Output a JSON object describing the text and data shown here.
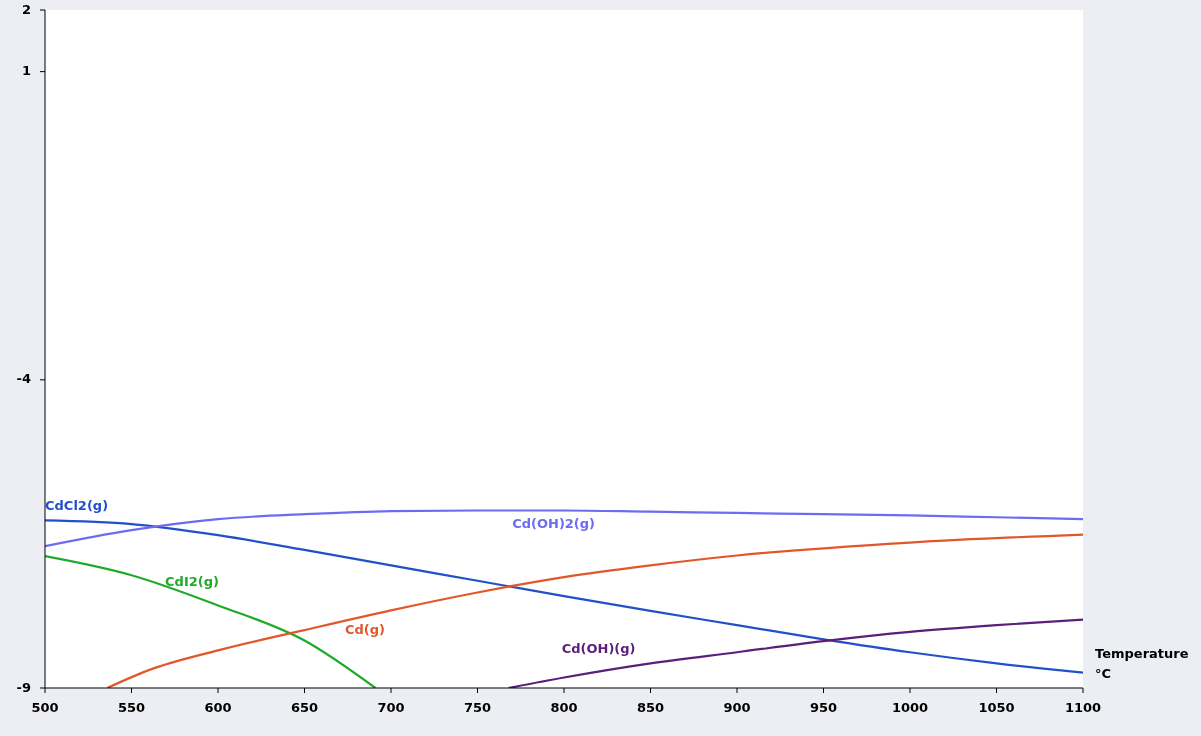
{
  "chart_data": {
    "type": "line",
    "xlabel": "Temperature\n°C",
    "xlim": [
      500,
      1100
    ],
    "ylim": [
      -9,
      2
    ],
    "xticks": [
      500,
      550,
      600,
      650,
      700,
      750,
      800,
      850,
      900,
      950,
      1000,
      1050,
      1100
    ],
    "yticks": [
      2,
      1,
      -4,
      -9
    ],
    "grid": false,
    "marker": "none",
    "line_style": "solid",
    "series": [
      {
        "name": "CdCl2(g)",
        "color": "#2150c8",
        "x": [
          500,
          550,
          600,
          650,
          700,
          750,
          800,
          850,
          900,
          950,
          1000,
          1050,
          1100
        ],
        "values": [
          -6.28,
          -6.34,
          -6.52,
          -6.76,
          -7.01,
          -7.26,
          -7.51,
          -7.75,
          -7.98,
          -8.21,
          -8.42,
          -8.6,
          -8.75
        ]
      },
      {
        "name": "Cd(OH)2(g)",
        "color": "#6b6cf2",
        "x": [
          500,
          550,
          600,
          650,
          700,
          750,
          800,
          850,
          900,
          950,
          1000,
          1050,
          1100
        ],
        "values": [
          -6.7,
          -6.44,
          -6.26,
          -6.18,
          -6.13,
          -6.12,
          -6.12,
          -6.14,
          -6.16,
          -6.18,
          -6.2,
          -6.23,
          -6.26
        ]
      },
      {
        "name": "CdI2(g)",
        "color": "#1faa2a",
        "x": [
          500,
          550,
          600,
          650,
          691
        ],
        "values": [
          -6.86,
          -7.17,
          -7.66,
          -8.23,
          -9
        ]
      },
      {
        "name": "Cd(g)",
        "color": "#e2572a",
        "x": [
          536,
          560,
          600,
          650,
          700,
          750,
          800,
          850,
          900,
          1000,
          1100
        ],
        "values": [
          -9,
          -8.71,
          -8.39,
          -8.06,
          -7.74,
          -7.45,
          -7.2,
          -7.01,
          -6.85,
          -6.64,
          -6.51
        ]
      },
      {
        "name": "Cd(OH)(g)",
        "color": "#5a1f7a",
        "x": [
          768,
          800,
          850,
          900,
          950,
          1000,
          1050,
          1100
        ],
        "values": [
          -9,
          -8.83,
          -8.6,
          -8.42,
          -8.24,
          -8.09,
          -7.98,
          -7.89
        ]
      }
    ]
  }
}
